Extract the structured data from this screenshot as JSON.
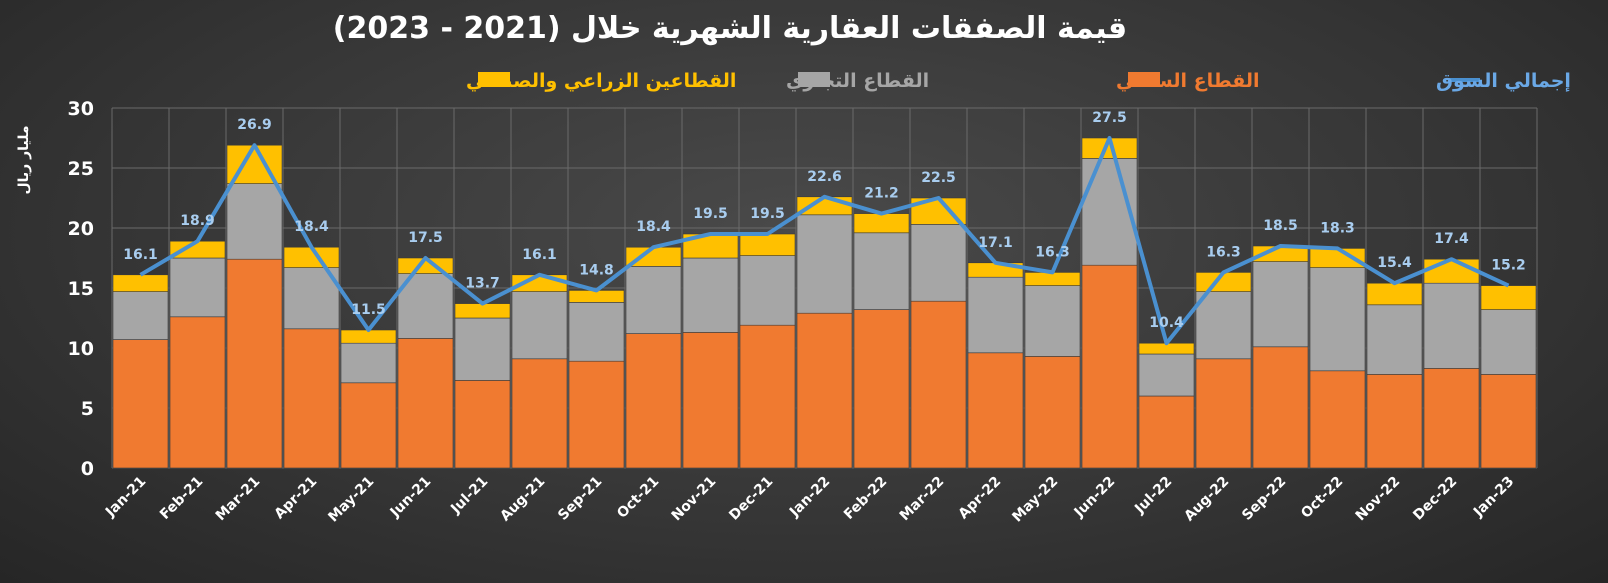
{
  "chart_data": {
    "type": "bar",
    "stacked": true,
    "title": "قيمة الصفقات العقارية الشهرية خلال (2021 - 2023)",
    "ylabel": "مليار ريال",
    "xlabel": "",
    "ylim": [
      0,
      30
    ],
    "yticks": [
      0,
      5,
      10,
      15,
      20,
      25,
      30
    ],
    "grid": true,
    "legend_position": "top",
    "categories": [
      "Jan-21",
      "Feb-21",
      "Mar-21",
      "Apr-21",
      "May-21",
      "Jun-21",
      "Jul-21",
      "Aug-21",
      "Sep-21",
      "Oct-21",
      "Nov-21",
      "Dec-21",
      "Jan-22",
      "Feb-22",
      "Mar-22",
      "Apr-22",
      "May-22",
      "Jun-22",
      "Jul-22",
      "Aug-22",
      "Sep-22",
      "Oct-22",
      "Nov-22",
      "Dec-22",
      "Jan-23"
    ],
    "series": [
      {
        "name": "القطاع السكني",
        "type": "bar",
        "color": "#f07a30",
        "values": [
          10.7,
          12.6,
          17.4,
          11.6,
          7.1,
          10.8,
          7.3,
          9.1,
          8.9,
          11.2,
          11.3,
          11.9,
          12.9,
          13.2,
          13.9,
          9.6,
          9.3,
          16.9,
          6.0,
          9.1,
          10.1,
          8.1,
          7.8,
          8.3,
          7.8
        ]
      },
      {
        "name": "القطاع التجاري",
        "type": "bar",
        "color": "#a6a6a6",
        "values": [
          4.0,
          4.9,
          6.3,
          5.1,
          3.3,
          5.4,
          5.2,
          5.6,
          4.9,
          5.6,
          6.2,
          5.8,
          8.2,
          6.4,
          6.4,
          6.3,
          5.9,
          8.9,
          3.5,
          5.6,
          7.1,
          8.6,
          5.8,
          7.1,
          5.4
        ]
      },
      {
        "name": "القطاعين الزراعي والصناعي",
        "type": "bar",
        "color": "#ffc000",
        "values": [
          1.4,
          1.4,
          3.2,
          1.7,
          1.1,
          1.3,
          1.2,
          1.4,
          1.0,
          1.6,
          2.0,
          1.8,
          1.5,
          1.6,
          2.2,
          1.2,
          1.1,
          1.7,
          0.9,
          1.6,
          1.3,
          1.6,
          1.8,
          2.0,
          2.0
        ]
      },
      {
        "name": "إجمالي السوق",
        "type": "line",
        "color": "#4a90d0",
        "values": [
          16.1,
          18.9,
          26.9,
          18.4,
          11.5,
          17.5,
          13.7,
          16.1,
          14.8,
          18.4,
          19.5,
          19.5,
          22.6,
          21.2,
          22.5,
          17.1,
          16.3,
          27.5,
          10.4,
          16.3,
          18.5,
          18.3,
          15.4,
          17.4,
          15.2
        ]
      }
    ]
  }
}
